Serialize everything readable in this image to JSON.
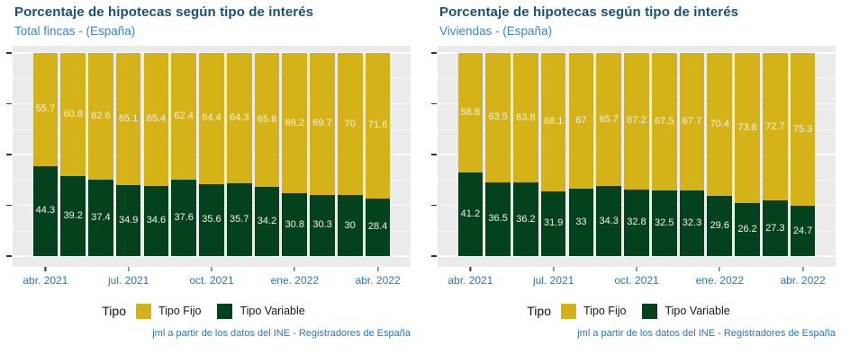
{
  "theme": {
    "title_color": "#1b4f72",
    "subtitle_color": "#3d85c6",
    "axis_text_color": "#2e75b5",
    "plot_background": "#ebebeb",
    "fijo_color": "#d4b218",
    "variable_color": "#04421d"
  },
  "chart_data": [
    {
      "type": "bar",
      "stacked": true,
      "title": "Porcentaje de hipotecas según tipo de interés",
      "subtitle": "Total fincas - (España)",
      "legend_title": "Tipo",
      "caption": "jml a partir de los datos del INE - Registradores de España",
      "ylim": [
        0,
        100
      ],
      "y_axis": {
        "major_gridlines": [
          0,
          25,
          50,
          75,
          100
        ],
        "minor_gridlines": [
          12.5,
          37.5,
          62.5,
          87.5
        ],
        "labels_visible": false
      },
      "x_ticks": [
        {
          "label": "abr. 2021",
          "index": 0
        },
        {
          "label": "jul. 2021",
          "index": 3
        },
        {
          "label": "oct. 2021",
          "index": 6
        },
        {
          "label": "ene. 2022",
          "index": 9
        },
        {
          "label": "abr. 2022",
          "index": 12
        }
      ],
      "series": [
        {
          "name": "Tipo Fijo",
          "color": "#d4b218",
          "values": [
            55.7,
            60.8,
            62.6,
            65.1,
            65.4,
            62.4,
            64.4,
            64.3,
            65.8,
            69.2,
            69.7,
            70,
            71.6
          ]
        },
        {
          "name": "Tipo Variable",
          "color": "#04421d",
          "values": [
            44.3,
            39.2,
            37.4,
            34.9,
            34.6,
            37.6,
            35.6,
            35.7,
            34.2,
            30.8,
            30.3,
            30,
            28.4
          ]
        }
      ]
    },
    {
      "type": "bar",
      "stacked": true,
      "title": "Porcentaje de hipotecas según tipo de interés",
      "subtitle": "Viviendas - (España)",
      "legend_title": "Tipo",
      "caption": "jml a partir de los datos del INE - Registradores de España",
      "ylim": [
        0,
        100
      ],
      "y_axis": {
        "major_gridlines": [
          0,
          25,
          50,
          75,
          100
        ],
        "minor_gridlines": [
          12.5,
          37.5,
          62.5,
          87.5
        ],
        "labels_visible": false
      },
      "x_ticks": [
        {
          "label": "abr. 2021",
          "index": 0
        },
        {
          "label": "jul. 2021",
          "index": 3
        },
        {
          "label": "oct. 2021",
          "index": 6
        },
        {
          "label": "ene. 2022",
          "index": 9
        },
        {
          "label": "abr. 2022",
          "index": 12
        }
      ],
      "series": [
        {
          "name": "Tipo Fijo",
          "color": "#d4b218",
          "values": [
            58.8,
            63.5,
            63.8,
            68.1,
            67,
            65.7,
            67.2,
            67.5,
            67.7,
            70.4,
            73.8,
            72.7,
            75.3
          ]
        },
        {
          "name": "Tipo Variable",
          "color": "#04421d",
          "values": [
            41.2,
            36.5,
            36.2,
            31.9,
            33,
            34.3,
            32.8,
            32.5,
            32.3,
            29.6,
            26.2,
            27.3,
            24.7
          ]
        }
      ]
    }
  ]
}
